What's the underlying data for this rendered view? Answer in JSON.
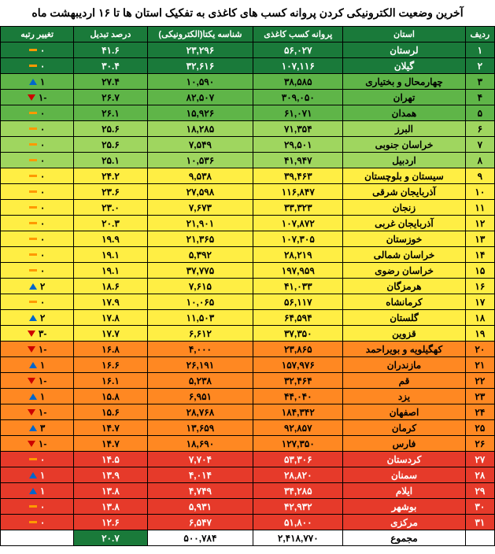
{
  "title": "آخرین وضعیت الکترونیکی کردن پروانه کسب های کاغذی به تفکیک استان ها تا ۱۶ اردیبهشت ماه",
  "headers": {
    "rank": "ردیف",
    "province": "استان",
    "paper": "پروانه کسب کاغذی",
    "electronic": "شناسه یکتا(الکترونیکی)",
    "percent": "درصد تبدیل",
    "change": "تغییر رتبه"
  },
  "colors": {
    "green_dark": "#1a7a3a",
    "green_mid": "#5fb548",
    "green_light": "#9fd65f",
    "yellow": "#ffee44",
    "orange": "#ff8822",
    "red": "#e63a2a",
    "white": "#ffffff"
  },
  "rows": [
    {
      "rank": "۱",
      "province": "لرستان",
      "paper": "۵۶,۰۲۷",
      "elec": "۲۳,۲۹۶",
      "pct": "۴۱.۶",
      "chg": "۰",
      "icon": "dash",
      "color": "green_dark"
    },
    {
      "rank": "۲",
      "province": "گیلان",
      "paper": "۱۰۷,۱۱۶",
      "elec": "۳۲,۶۱۶",
      "pct": "۳۰.۴",
      "chg": "۰",
      "icon": "dash",
      "color": "green_dark"
    },
    {
      "rank": "۳",
      "province": "چهارمحال و بختیاری",
      "paper": "۳۸,۵۸۵",
      "elec": "۱۰,۵۹۰",
      "pct": "۲۷.۴",
      "chg": "۱",
      "icon": "up",
      "color": "green_mid"
    },
    {
      "rank": "۴",
      "province": "تهران",
      "paper": "۳۰۹,۰۵۰",
      "elec": "۸۲,۵۰۷",
      "pct": "۲۶.۷",
      "chg": "-۱",
      "icon": "down",
      "color": "green_mid"
    },
    {
      "rank": "۵",
      "province": "همدان",
      "paper": "۶۱,۰۷۱",
      "elec": "۱۵,۹۲۶",
      "pct": "۲۶.۱",
      "chg": "۰",
      "icon": "dash",
      "color": "green_mid"
    },
    {
      "rank": "۶",
      "province": "البرز",
      "paper": "۷۱,۳۵۴",
      "elec": "۱۸,۲۸۵",
      "pct": "۲۵.۶",
      "chg": "۰",
      "icon": "dash",
      "color": "green_light"
    },
    {
      "rank": "۷",
      "province": "خراسان جنوبی",
      "paper": "۲۹,۵۰۱",
      "elec": "۷,۵۴۹",
      "pct": "۲۵.۶",
      "chg": "۰",
      "icon": "dash",
      "color": "green_light"
    },
    {
      "rank": "۸",
      "province": "اردبیل",
      "paper": "۴۱,۹۴۷",
      "elec": "۱۰,۵۳۶",
      "pct": "۲۵.۱",
      "chg": "۰",
      "icon": "dash",
      "color": "green_light"
    },
    {
      "rank": "۹",
      "province": "سیستان و بلوچستان",
      "paper": "۳۹,۴۶۳",
      "elec": "۹,۵۳۸",
      "pct": "۲۴.۲",
      "chg": "۰",
      "icon": "dash",
      "color": "yellow"
    },
    {
      "rank": "۱۰",
      "province": "آذربایجان شرقی",
      "paper": "۱۱۶,۸۴۷",
      "elec": "۲۷,۵۹۸",
      "pct": "۲۳.۶",
      "chg": "۰",
      "icon": "dash",
      "color": "yellow"
    },
    {
      "rank": "۱۱",
      "province": "زنجان",
      "paper": "۳۳,۳۲۳",
      "elec": "۷,۶۷۳",
      "pct": "۲۳.۰",
      "chg": "۰",
      "icon": "dash",
      "color": "yellow"
    },
    {
      "rank": "۱۲",
      "province": "آذربایجان غربی",
      "paper": "۱۰۷,۸۷۲",
      "elec": "۲۱,۹۰۱",
      "pct": "۲۰.۳",
      "chg": "۰",
      "icon": "dash",
      "color": "yellow"
    },
    {
      "rank": "۱۳",
      "province": "خوزستان",
      "paper": "۱۰۷,۳۰۵",
      "elec": "۲۱,۳۶۵",
      "pct": "۱۹.۹",
      "chg": "۰",
      "icon": "dash",
      "color": "yellow"
    },
    {
      "rank": "۱۴",
      "province": "خراسان شمالی",
      "paper": "۲۸,۲۱۹",
      "elec": "۵,۳۹۲",
      "pct": "۱۹.۱",
      "chg": "۰",
      "icon": "dash",
      "color": "yellow"
    },
    {
      "rank": "۱۵",
      "province": "خراسان رضوی",
      "paper": "۱۹۷,۹۵۹",
      "elec": "۳۷,۷۷۵",
      "pct": "۱۹.۱",
      "chg": "۰",
      "icon": "dash",
      "color": "yellow"
    },
    {
      "rank": "۱۶",
      "province": "هرمزگان",
      "paper": "۴۱,۰۳۳",
      "elec": "۷,۶۱۵",
      "pct": "۱۸.۶",
      "chg": "۲",
      "icon": "up",
      "color": "yellow"
    },
    {
      "rank": "۱۷",
      "province": "کرمانشاه",
      "paper": "۵۶,۱۱۷",
      "elec": "۱۰,۰۶۵",
      "pct": "۱۷.۹",
      "chg": "۰",
      "icon": "dash",
      "color": "yellow"
    },
    {
      "rank": "۱۸",
      "province": "گلستان",
      "paper": "۶۴,۵۹۴",
      "elec": "۱۱,۵۰۳",
      "pct": "۱۷.۸",
      "chg": "۲",
      "icon": "up",
      "color": "yellow"
    },
    {
      "rank": "۱۹",
      "province": "قزوین",
      "paper": "۳۷,۳۵۰",
      "elec": "۶,۶۱۲",
      "pct": "۱۷.۷",
      "chg": "-۳",
      "icon": "down",
      "color": "yellow"
    },
    {
      "rank": "۲۰",
      "province": "کهگیلویه و بویراحمد",
      "paper": "۲۳,۸۶۵",
      "elec": "۴,۰۰۰",
      "pct": "۱۶.۸",
      "chg": "-۱",
      "icon": "down",
      "color": "orange"
    },
    {
      "rank": "۲۱",
      "province": "مازندران",
      "paper": "۱۵۷,۹۷۶",
      "elec": "۲۶,۱۹۱",
      "pct": "۱۶.۶",
      "chg": "۱",
      "icon": "up",
      "color": "orange"
    },
    {
      "rank": "۲۲",
      "province": "قم",
      "paper": "۳۲,۴۶۴",
      "elec": "۵,۲۳۸",
      "pct": "۱۶.۱",
      "chg": "-۱",
      "icon": "down",
      "color": "orange"
    },
    {
      "rank": "۲۳",
      "province": "یزد",
      "paper": "۴۴,۰۴۰",
      "elec": "۶,۹۵۱",
      "pct": "۱۵.۸",
      "chg": "۱",
      "icon": "up",
      "color": "orange"
    },
    {
      "rank": "۲۴",
      "province": "اصفهان",
      "paper": "۱۸۴,۳۴۲",
      "elec": "۲۸,۷۶۸",
      "pct": "۱۵.۶",
      "chg": "-۱",
      "icon": "down",
      "color": "orange"
    },
    {
      "rank": "۲۵",
      "province": "کرمان",
      "paper": "۹۲,۸۵۷",
      "elec": "۱۳,۶۵۹",
      "pct": "۱۴.۷",
      "chg": "۳",
      "icon": "up",
      "color": "orange"
    },
    {
      "rank": "۲۶",
      "province": "فارس",
      "paper": "۱۲۷,۳۵۰",
      "elec": "۱۸,۶۹۰",
      "pct": "۱۴.۷",
      "chg": "-۱",
      "icon": "down",
      "color": "orange"
    },
    {
      "rank": "۲۷",
      "province": "کردستان",
      "paper": "۵۳,۳۰۶",
      "elec": "۷,۷۰۴",
      "pct": "۱۴.۵",
      "chg": "۰",
      "icon": "dash",
      "color": "red"
    },
    {
      "rank": "۲۸",
      "province": "سمنان",
      "paper": "۲۸,۸۲۰",
      "elec": "۴,۰۱۴",
      "pct": "۱۳.۹",
      "chg": "۱",
      "icon": "up",
      "color": "red"
    },
    {
      "rank": "۲۹",
      "province": "ایلام",
      "paper": "۳۴,۲۸۵",
      "elec": "۴,۷۴۹",
      "pct": "۱۳.۸",
      "chg": "۱",
      "icon": "up",
      "color": "red"
    },
    {
      "rank": "۳۰",
      "province": "بوشهر",
      "paper": "۴۲,۹۳۲",
      "elec": "۵,۹۳۱",
      "pct": "۱۳.۸",
      "chg": "۰",
      "icon": "dash",
      "color": "red"
    },
    {
      "rank": "۳۱",
      "province": "مرکزی",
      "paper": "۵۱,۸۰۰",
      "elec": "۶,۵۴۷",
      "pct": "۱۲.۶",
      "chg": "۰",
      "icon": "dash",
      "color": "red"
    }
  ],
  "total": {
    "label": "مجموع",
    "paper": "۲,۴۱۸,۷۷۰",
    "elec": "۵۰۰,۷۸۴",
    "pct": "۲۰.۷"
  }
}
